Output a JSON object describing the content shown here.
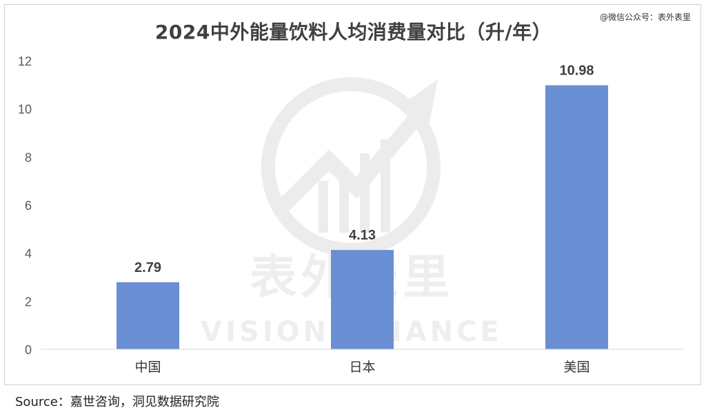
{
  "credit": "@微信公众号：表外表里",
  "source": "Source：嘉世咨询，洞见数据研究院",
  "watermark": {
    "text_cn": "表外表里",
    "text_en": "VISION FINANCE"
  },
  "colors": {
    "bar": "#6a8fd4",
    "axis_text": "#595959",
    "label_text": "#404040",
    "baseline": "#d9d9d9",
    "watermark": "#ececec"
  },
  "chart_data": {
    "type": "bar",
    "title": "2024中外能量饮料人均消费量对比（升/年）",
    "categories": [
      "中国",
      "日本",
      "美国"
    ],
    "values": [
      2.79,
      4.13,
      10.98
    ],
    "value_labels": [
      "2.79",
      "4.13",
      "10.98"
    ],
    "y_ticks": [
      "0",
      "2",
      "4",
      "6",
      "8",
      "10",
      "12"
    ],
    "ylim": [
      0,
      12
    ],
    "grid": false,
    "legend": "none",
    "xlabel": "",
    "ylabel": ""
  }
}
